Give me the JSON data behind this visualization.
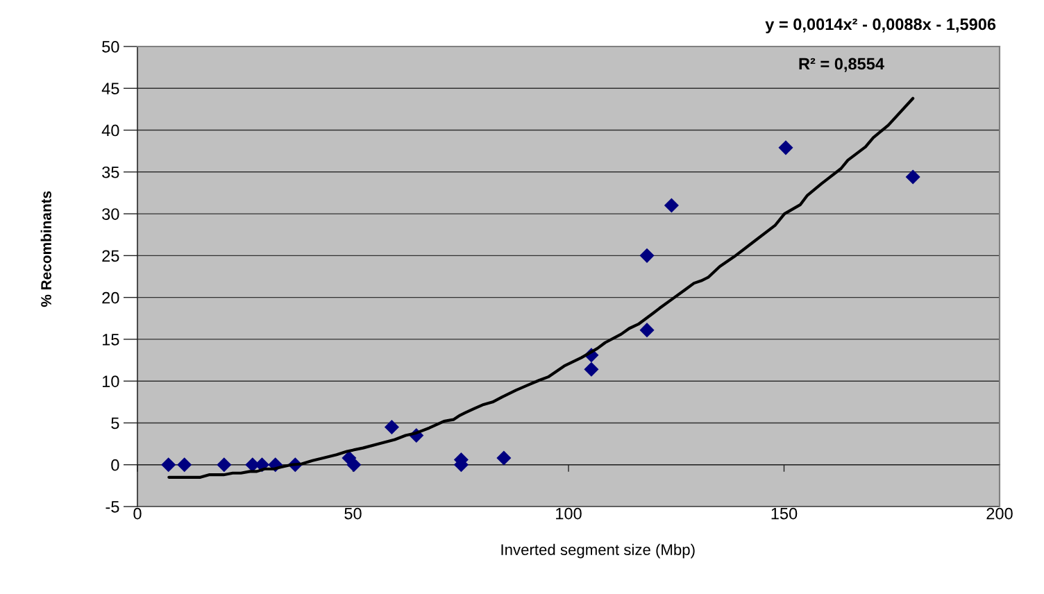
{
  "chart_data": {
    "type": "scatter",
    "xlabel": "Inverted segment size (Mbp)",
    "ylabel": "% Recombinants",
    "annotations": [
      "y = 0,0014x² - 0,0088x - 1,5906",
      "R² = 0,8554"
    ],
    "xlim": [
      0,
      200
    ],
    "xticks": [
      0,
      50,
      100,
      150,
      200
    ],
    "ylim": [
      -5,
      50
    ],
    "yticks": [
      -5,
      0,
      5,
      10,
      15,
      20,
      25,
      30,
      35,
      40,
      45,
      50
    ],
    "grid": "y",
    "series": [
      {
        "color": "#000080",
        "marker": "diamond",
        "x": [
          7.2,
          10.9,
          20.1,
          26.7,
          28.9,
          32.0,
          36.6,
          49.1,
          50.2,
          59.0,
          64.7,
          75.1,
          75.1,
          85.0,
          105.3,
          105.3,
          118.2,
          118.2,
          123.9,
          150.4,
          179.9
        ],
        "values": [
          0,
          0,
          0,
          0,
          0,
          0,
          0,
          0.8,
          0,
          4.5,
          3.5,
          0.6,
          0,
          0.8,
          13.1,
          11.4,
          16.1,
          25.0,
          31.0,
          37.9,
          34.4
        ]
      },
      {
        "type": "line",
        "color": "#000000",
        "marker": "none",
        "line_style": "solid",
        "x": [
          7.3,
          14.6,
          16.6,
          20.0,
          22.1,
          24.0,
          26.1,
          27.7,
          29.5,
          31.7,
          33.2,
          35.7,
          38.1,
          40.6,
          43.1,
          46.2,
          48.6,
          52.3,
          56.0,
          59.7,
          62.2,
          64.7,
          67.7,
          71.1,
          73.3,
          74.8,
          76.0,
          78.1,
          80.3,
          82.4,
          84.6,
          87.8,
          90.5,
          93.2,
          95.3,
          99.0,
          103.0,
          106.7,
          108.5,
          112.2,
          114.1,
          116.2,
          119.6,
          121.1,
          124.3,
          127.0,
          129.1,
          130.8,
          132.4,
          135.1,
          138.5,
          142.3,
          147.9,
          150.1,
          153.8,
          155.4,
          158.7,
          163.2,
          164.8,
          168.9,
          170.7,
          174.2,
          179.9
        ],
        "values": [
          -1.5,
          -1.5,
          -1.2,
          -1.2,
          -1.0,
          -1.0,
          -0.8,
          -0.8,
          -0.5,
          -0.5,
          -0.3,
          0.0,
          0.1,
          0.5,
          0.8,
          1.2,
          1.6,
          2.0,
          2.5,
          3.0,
          3.5,
          3.8,
          4.4,
          5.2,
          5.4,
          5.9,
          6.2,
          6.7,
          7.2,
          7.5,
          8.1,
          8.9,
          9.5,
          10.1,
          10.5,
          11.8,
          12.8,
          13.9,
          14.6,
          15.6,
          16.3,
          16.8,
          18.1,
          18.7,
          19.9,
          20.9,
          21.7,
          22.0,
          22.4,
          23.7,
          24.9,
          26.4,
          28.6,
          30.0,
          31.1,
          32.2,
          33.6,
          35.4,
          36.4,
          38.0,
          39.1,
          40.6,
          43.8
        ]
      }
    ]
  }
}
